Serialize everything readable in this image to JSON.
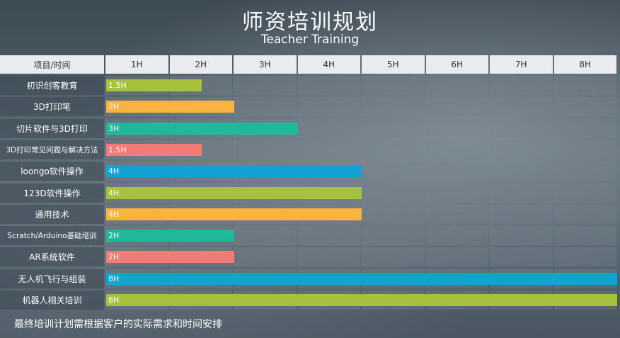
{
  "title": "师资培训规划",
  "subtitle": "Teacher Training",
  "footnote": "最终培训计划需根据客户的实际需求和时间安排",
  "chart_data": {
    "type": "bar",
    "orientation": "horizontal",
    "corner_header": "项目/时间",
    "columns": [
      "1H",
      "2H",
      "3H",
      "4H",
      "5H",
      "6H",
      "7H",
      "8H"
    ],
    "xlim": [
      0,
      8
    ],
    "unit": "H",
    "items": [
      {
        "label": "初识创客教育",
        "value": 1.5,
        "value_label": "1.5H",
        "color": "#a6c13b"
      },
      {
        "label": "3D打印笔",
        "value": 2,
        "value_label": "2H",
        "color": "#f8b340"
      },
      {
        "label": "切片软件与3D打印",
        "value": 3,
        "value_label": "3H",
        "color": "#1fb89b"
      },
      {
        "label": "3D打印常见问题与解决方法",
        "value": 1.5,
        "value_label": "1.5H",
        "color": "#f27b76"
      },
      {
        "label": "loongo软件操作",
        "value": 4,
        "value_label": "4H",
        "color": "#12a3d3"
      },
      {
        "label": "123D软件操作",
        "value": 4,
        "value_label": "4H",
        "color": "#a6c13b"
      },
      {
        "label": "通用技术",
        "value": 4,
        "value_label": "4H",
        "color": "#f8b340"
      },
      {
        "label": "Scratch/Arduino基础培训",
        "value": 2,
        "value_label": "2H",
        "color": "#1fb89b"
      },
      {
        "label": "AR系统软件",
        "value": 2,
        "value_label": "2H",
        "color": "#f27b76"
      },
      {
        "label": "无人机飞行与组装",
        "value": 8,
        "value_label": "8H",
        "color": "#12a3d3"
      },
      {
        "label": "机器人相关培训",
        "value": 8,
        "value_label": "8H",
        "color": "#a6c13b"
      }
    ]
  }
}
